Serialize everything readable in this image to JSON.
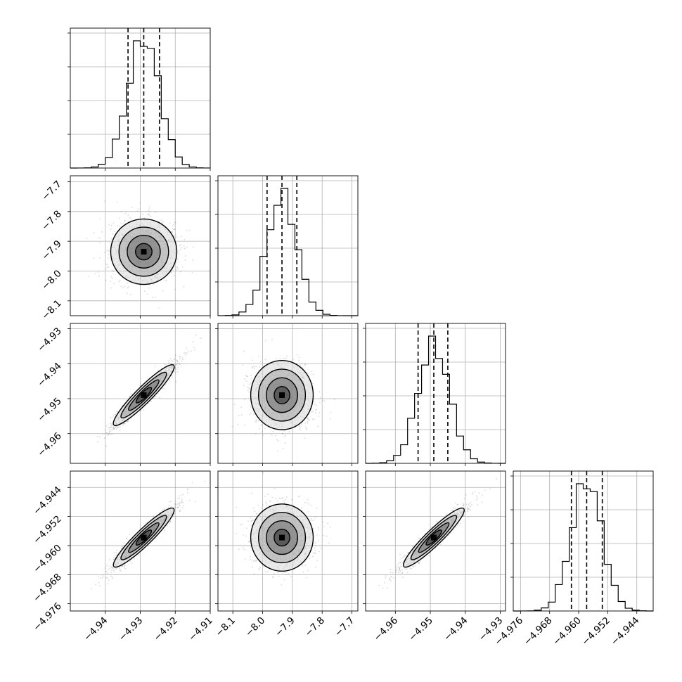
{
  "chart_data": {
    "type": "corner",
    "grid": true,
    "parameters": [
      {
        "axis_range": [
          -4.95,
          -4.91
        ],
        "ticks": [
          -4.94,
          -4.93,
          -4.92,
          -4.91
        ],
        "tick_labels": [
          "−4.94",
          "−4.93",
          "−4.92",
          "−4.91"
        ],
        "median": -4.929,
        "quantile_16": -4.9335,
        "quantile_84": -4.9245,
        "std": 0.0045
      },
      {
        "axis_range": [
          -8.15,
          -7.68
        ],
        "ticks": [
          -8.1,
          -8.0,
          -7.9,
          -7.8,
          -7.7
        ],
        "tick_labels": [
          "−8.1",
          "−8.0",
          "−7.9",
          "−7.8",
          "−7.7"
        ],
        "median": -7.935,
        "quantile_16": -7.985,
        "quantile_84": -7.885,
        "std": 0.05
      },
      {
        "axis_range": [
          -4.9685,
          -4.9285
        ],
        "ticks": [
          -4.96,
          -4.95,
          -4.94,
          -4.93
        ],
        "tick_labels": [
          "−4.96",
          "−4.95",
          "−4.94",
          "−4.93"
        ],
        "median": -4.949,
        "quantile_16": -4.9535,
        "quantile_84": -4.945,
        "std": 0.0045
      },
      {
        "axis_range": [
          -4.978,
          -4.9395
        ],
        "ticks": [
          -4.976,
          -4.968,
          -4.96,
          -4.952,
          -4.944
        ],
        "tick_labels": [
          "−4.976",
          "−4.968",
          "−4.960",
          "−4.952",
          "−4.944"
        ],
        "median": -4.9578,
        "quantile_16": -4.962,
        "quantile_84": -4.9535,
        "std": 0.0042
      }
    ],
    "correlations": [
      [
        1,
        0,
        0.95,
        0.95
      ],
      [
        0,
        1,
        0,
        0
      ],
      [
        0.95,
        0,
        1,
        0.95
      ],
      [
        0.95,
        0,
        0.95,
        1
      ]
    ]
  }
}
